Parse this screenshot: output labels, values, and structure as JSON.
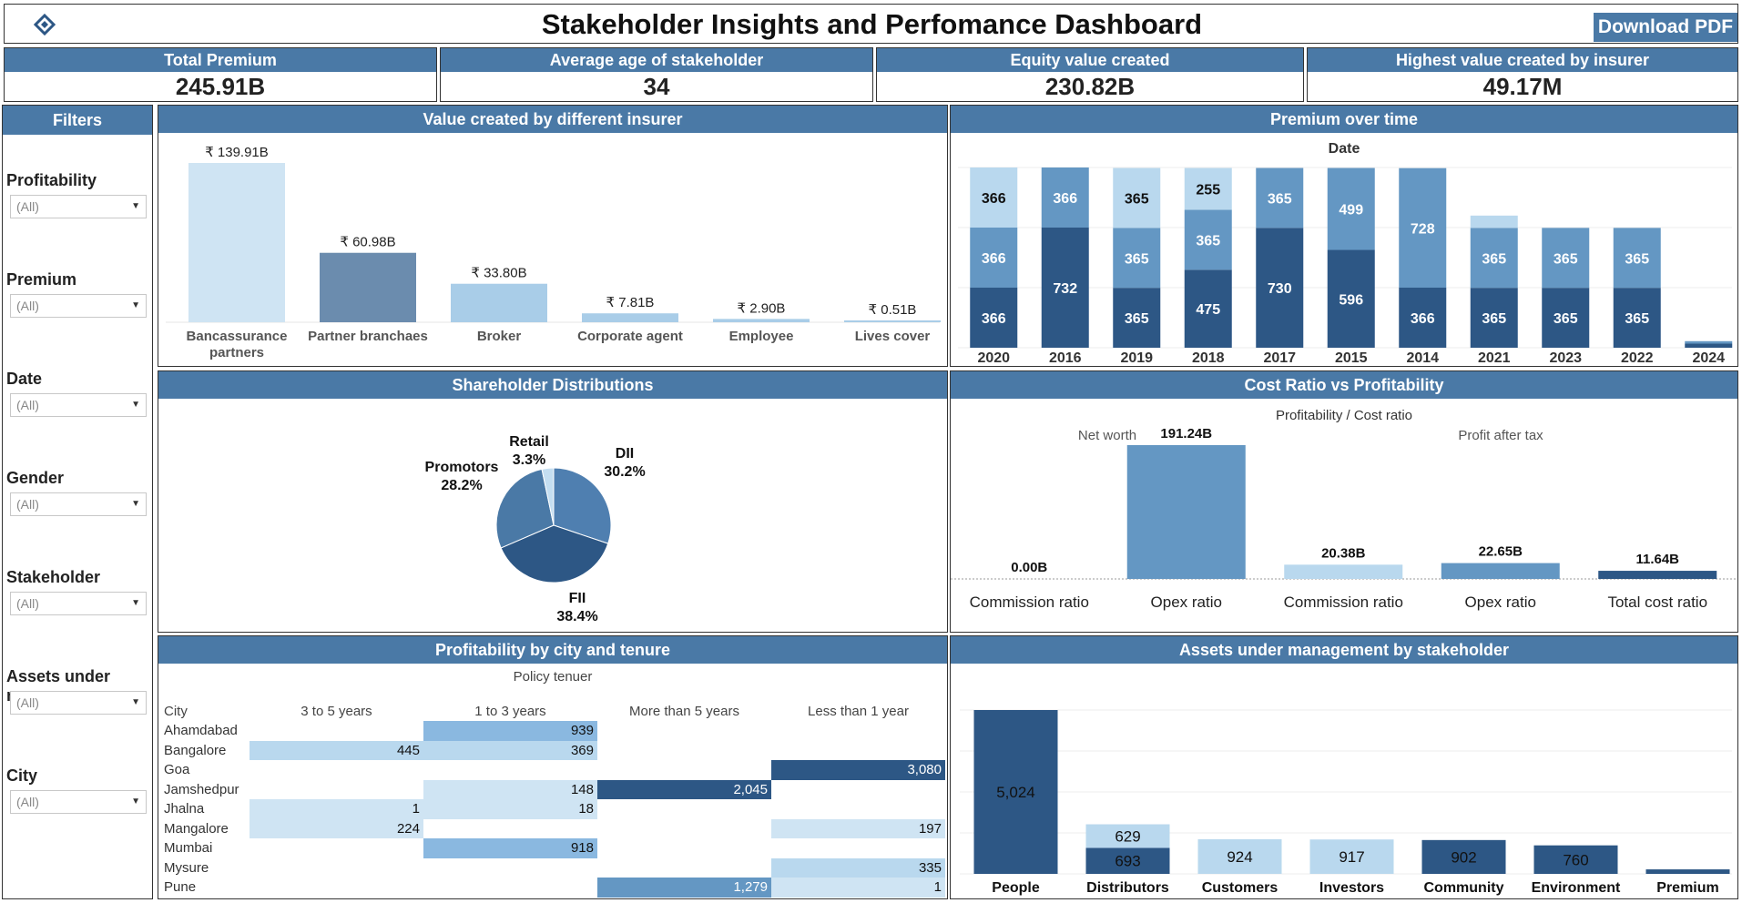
{
  "header": {
    "title": "Stakeholder Insights and Perfomance Dashboard",
    "download_label": "Download PDF"
  },
  "kpis": [
    {
      "title": "Total Premium",
      "value": "245.91B"
    },
    {
      "title": "Average age of stakeholder",
      "value": "34"
    },
    {
      "title": "Equity value created",
      "value": "230.82B"
    },
    {
      "title": "Highest value created by insurer",
      "value": "49.17M"
    }
  ],
  "filters": {
    "title": "Filters",
    "items": [
      {
        "label": "Profitability",
        "value": "(All)"
      },
      {
        "label": "Premium",
        "value": "(All)"
      },
      {
        "label": "Date",
        "value": "(All)"
      },
      {
        "label": "Gender",
        "value": "(All)"
      },
      {
        "label": "Stakeholder",
        "value": "(All)"
      },
      {
        "label": "Assets under man..",
        "value": "(All)"
      },
      {
        "label": "City",
        "value": "(All)"
      }
    ]
  },
  "panels": {
    "insurer": "Value created by different insurer",
    "premium_time": "Premium over time",
    "shareholder": "Shareholder Distributions",
    "cost_ratio": "Cost Ratio vs Profitability",
    "city_tenure": "Profitability by city and tenure",
    "aum": "Assets under management by stakeholder"
  },
  "colors": {
    "header_blue": "#4a79a6",
    "light": "#b9d8ee",
    "mid": "#6497c3",
    "dark": "#2d5785",
    "steel": "#6b8cae",
    "pale": "#cfe4f3"
  },
  "chart_data": [
    {
      "id": "insurer",
      "type": "bar",
      "categories": [
        "Bancassurance partners",
        "Partner branchaes",
        "Broker",
        "Corporate agent",
        "Employee",
        "Lives cover"
      ],
      "values": [
        139.91,
        60.98,
        33.8,
        7.81,
        2.9,
        0.51
      ],
      "labels": [
        "₹ 139.91B",
        "₹ 60.98B",
        "₹ 33.80B",
        "₹ 7.81B",
        "₹ 2.90B",
        "₹ 0.51B"
      ]
    },
    {
      "id": "premium_time",
      "type": "bar",
      "title": "Date",
      "categories": [
        "2020",
        "2016",
        "2019",
        "2018",
        "2017",
        "2015",
        "2014",
        "2021",
        "2023",
        "2022",
        "2024"
      ],
      "segments": [
        [
          {
            "v": 366,
            "c": "dark"
          },
          {
            "v": 366,
            "c": "mid"
          },
          {
            "v": 366,
            "c": "light"
          }
        ],
        [
          {
            "v": 732,
            "c": "dark"
          },
          {
            "v": 366,
            "c": "mid"
          }
        ],
        [
          {
            "v": 365,
            "c": "dark"
          },
          {
            "v": 365,
            "c": "mid"
          },
          {
            "v": 365,
            "c": "light"
          }
        ],
        [
          {
            "v": 475,
            "c": "dark"
          },
          {
            "v": 365,
            "c": "mid"
          },
          {
            "v": 255,
            "c": "light"
          }
        ],
        [
          {
            "v": 730,
            "c": "dark"
          },
          {
            "v": 365,
            "c": "mid"
          }
        ],
        [
          {
            "v": 596,
            "c": "dark"
          },
          {
            "v": 499,
            "c": "mid"
          }
        ],
        [
          {
            "v": 366,
            "c": "dark"
          },
          {
            "v": 728,
            "c": "mid"
          }
        ],
        [
          {
            "v": 365,
            "c": "dark"
          },
          {
            "v": 365,
            "c": "mid"
          },
          {
            "v": 75,
            "c": "light",
            "nolabel": true
          }
        ],
        [
          {
            "v": 365,
            "c": "dark"
          },
          {
            "v": 365,
            "c": "mid"
          }
        ],
        [
          {
            "v": 365,
            "c": "dark"
          },
          {
            "v": 365,
            "c": "mid"
          }
        ],
        [
          {
            "v": 25,
            "c": "dark",
            "nolabel": true
          },
          {
            "v": 15,
            "c": "mid",
            "nolabel": true
          }
        ]
      ]
    },
    {
      "id": "shareholder",
      "type": "pie",
      "slices": [
        {
          "name": "DII",
          "pct": "30.2%",
          "value": 30.2,
          "c": "mid"
        },
        {
          "name": "FII",
          "pct": "38.4%",
          "value": 38.4,
          "c": "dark"
        },
        {
          "name": "Promotors",
          "pct": "28.2%",
          "value": 28.2,
          "c": "mid2"
        },
        {
          "name": "Retail",
          "pct": "3.3%",
          "value": 3.3,
          "c": "light"
        }
      ]
    },
    {
      "id": "cost_ratio",
      "type": "bar",
      "title": "Profitability  /  Cost ratio",
      "groups": [
        "Net worth",
        "Profit after tax"
      ],
      "categories": [
        "Commission ratio",
        "Opex ratio",
        "Commission ratio",
        "Opex ratio",
        "Total cost ratio"
      ],
      "values": [
        0.0,
        191.24,
        20.38,
        22.65,
        11.64
      ],
      "labels": [
        "0.00B",
        "191.24B",
        "20.38B",
        "22.65B",
        "11.64B"
      ],
      "colors": [
        "mid",
        "mid",
        "light",
        "mid",
        "dark"
      ]
    },
    {
      "id": "city_tenure",
      "type": "table",
      "title": "Policy tenuer",
      "columns": [
        "City",
        "3 to 5 years",
        "1 to 3 years",
        "More than 5 years",
        "Less than 1 year"
      ],
      "rows": [
        {
          "city": "Ahamdabad",
          "cells": [
            null,
            939,
            null,
            null
          ]
        },
        {
          "city": "Bangalore",
          "cells": [
            445,
            369,
            null,
            null
          ]
        },
        {
          "city": "Goa",
          "cells": [
            null,
            null,
            null,
            3080
          ]
        },
        {
          "city": "Jamshedpur",
          "cells": [
            null,
            148,
            2045,
            null
          ]
        },
        {
          "city": "Jhalna",
          "cells": [
            1,
            18,
            null,
            null
          ]
        },
        {
          "city": "Mangalore",
          "cells": [
            224,
            null,
            null,
            197
          ]
        },
        {
          "city": "Mumbai",
          "cells": [
            null,
            918,
            null,
            null
          ]
        },
        {
          "city": "Mysure",
          "cells": [
            null,
            null,
            null,
            335
          ]
        },
        {
          "city": "Pune",
          "cells": [
            null,
            null,
            1279,
            1
          ]
        }
      ],
      "cell_text": [
        [
          "",
          "939",
          "",
          ""
        ],
        [
          "445",
          "369",
          "",
          ""
        ],
        [
          "",
          "",
          "",
          "3,080"
        ],
        [
          "",
          "148",
          "2,045",
          ""
        ],
        [
          "1",
          "18",
          "",
          ""
        ],
        [
          "224",
          "",
          "",
          "197"
        ],
        [
          "",
          "918",
          "",
          ""
        ],
        [
          "",
          "",
          "",
          "335"
        ],
        [
          "",
          "",
          "1,279",
          "1"
        ]
      ]
    },
    {
      "id": "aum",
      "type": "bar",
      "categories": [
        "People",
        "Distributors",
        "Customers",
        "Investors",
        "Community",
        "Environment",
        "Premium"
      ],
      "segments": [
        [
          {
            "v": 5024,
            "c": "dark",
            "label": "5,024"
          }
        ],
        [
          {
            "v": 693,
            "c": "dark",
            "label": "693"
          },
          {
            "v": 629,
            "c": "light",
            "label": "629"
          }
        ],
        [
          {
            "v": 924,
            "c": "light",
            "label": "924"
          }
        ],
        [
          {
            "v": 917,
            "c": "light",
            "label": "917"
          }
        ],
        [
          {
            "v": 902,
            "c": "dark",
            "label": "902"
          }
        ],
        [
          {
            "v": 760,
            "c": "dark",
            "label": "760"
          }
        ],
        [
          {
            "v": 120,
            "c": "dark",
            "label": ""
          }
        ]
      ]
    }
  ]
}
